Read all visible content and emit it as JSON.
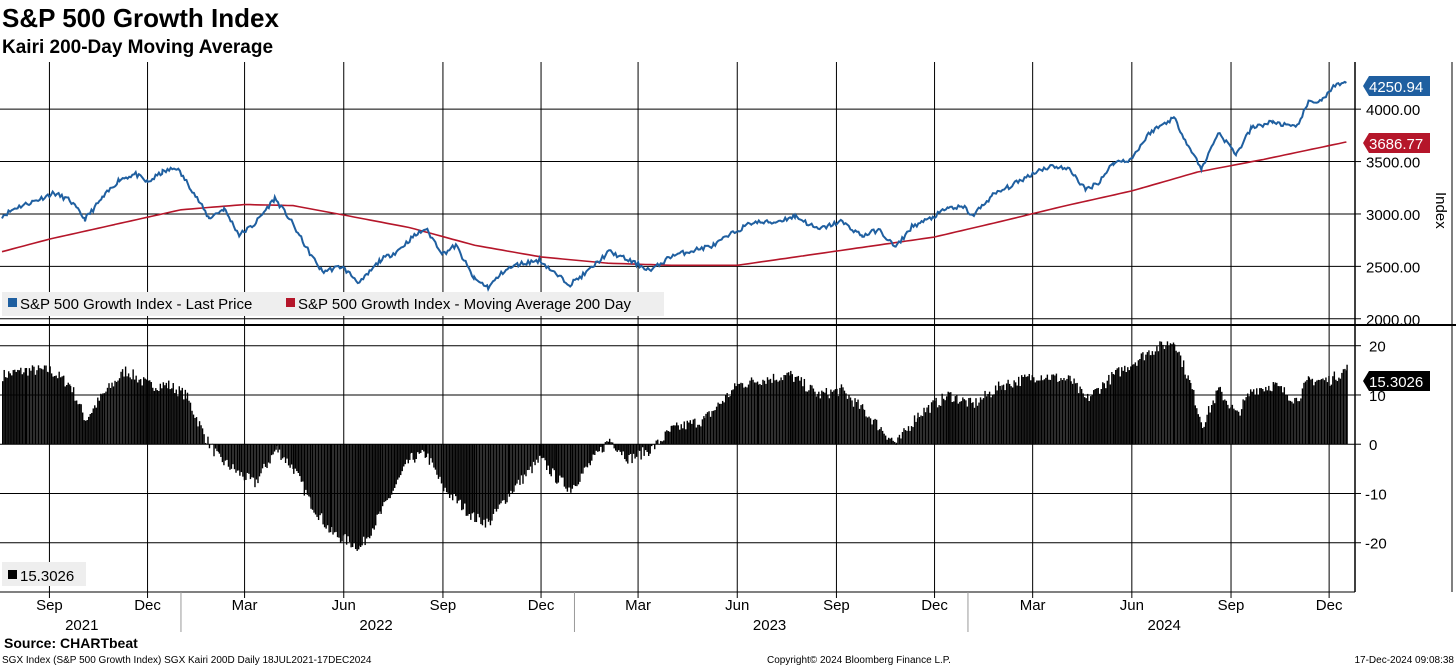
{
  "header": {
    "title": "S&P 500 Growth Index",
    "subtitle": "Kairi 200-Day Moving Average"
  },
  "footer": {
    "source": "Source: CHARTbeat",
    "ticker_info": "SGX Index (S&P 500 Growth Index) SGX Kairi 200D  Daily 18JUL2021-17DEC2024",
    "copyright": "Copyright© 2024 Bloomberg Finance L.P.",
    "timestamp": "17-Dec-2024 09:08:38"
  },
  "colors": {
    "price": "#1f5fa0",
    "ma": "#b5162a",
    "kairi": "#000000",
    "grid": "#000000"
  },
  "chart_data": [
    {
      "type": "line",
      "ylabel": "Index",
      "ylim": [
        1950,
        4450
      ],
      "yticks": [
        "2000.00",
        "2500.00",
        "3000.00",
        "3500.00",
        "4000.00"
      ],
      "grid": true,
      "legend_placement": "bottom-left",
      "series": [
        {
          "name": "S&P 500 Growth Index - Last Price",
          "last_label": "4250.94",
          "points": [
            [
              "2021-07-19",
              2980
            ],
            [
              "2021-08-01",
              3060
            ],
            [
              "2021-08-20",
              3130
            ],
            [
              "2021-09-05",
              3200
            ],
            [
              "2021-09-20",
              3130
            ],
            [
              "2021-10-04",
              2950
            ],
            [
              "2021-10-20",
              3150
            ],
            [
              "2021-11-05",
              3330
            ],
            [
              "2021-11-20",
              3380
            ],
            [
              "2021-12-01",
              3300
            ],
            [
              "2021-12-15",
              3400
            ],
            [
              "2021-12-28",
              3440
            ],
            [
              "2022-01-10",
              3250
            ],
            [
              "2022-01-27",
              2960
            ],
            [
              "2022-02-10",
              3050
            ],
            [
              "2022-02-24",
              2800
            ],
            [
              "2022-03-10",
              2900
            ],
            [
              "2022-03-29",
              3150
            ],
            [
              "2022-04-12",
              2950
            ],
            [
              "2022-04-29",
              2650
            ],
            [
              "2022-05-12",
              2450
            ],
            [
              "2022-05-30",
              2500
            ],
            [
              "2022-06-16",
              2340
            ],
            [
              "2022-07-05",
              2560
            ],
            [
              "2022-07-20",
              2640
            ],
            [
              "2022-08-04",
              2780
            ],
            [
              "2022-08-16",
              2860
            ],
            [
              "2022-09-01",
              2620
            ],
            [
              "2022-09-13",
              2700
            ],
            [
              "2022-09-30",
              2380
            ],
            [
              "2022-10-13",
              2300
            ],
            [
              "2022-10-28",
              2460
            ],
            [
              "2022-11-10",
              2520
            ],
            [
              "2022-11-30",
              2560
            ],
            [
              "2022-12-15",
              2420
            ],
            [
              "2022-12-28",
              2330
            ],
            [
              "2023-01-12",
              2440
            ],
            [
              "2023-02-02",
              2640
            ],
            [
              "2023-02-20",
              2560
            ],
            [
              "2023-03-13",
              2460
            ],
            [
              "2023-04-01",
              2600
            ],
            [
              "2023-04-20",
              2650
            ],
            [
              "2023-05-10",
              2700
            ],
            [
              "2023-05-30",
              2830
            ],
            [
              "2023-06-15",
              2920
            ],
            [
              "2023-07-05",
              2920
            ],
            [
              "2023-07-25",
              2980
            ],
            [
              "2023-08-15",
              2850
            ],
            [
              "2023-09-05",
              2930
            ],
            [
              "2023-09-25",
              2790
            ],
            [
              "2023-10-10",
              2850
            ],
            [
              "2023-10-26",
              2680
            ],
            [
              "2023-11-10",
              2880
            ],
            [
              "2023-11-28",
              2960
            ],
            [
              "2023-12-14",
              3060
            ],
            [
              "2023-12-29",
              3060
            ],
            [
              "2024-01-05",
              2980
            ],
            [
              "2024-01-24",
              3180
            ],
            [
              "2024-02-12",
              3280
            ],
            [
              "2024-03-07",
              3420
            ],
            [
              "2024-03-20",
              3460
            ],
            [
              "2024-04-05",
              3420
            ],
            [
              "2024-04-19",
              3230
            ],
            [
              "2024-05-01",
              3300
            ],
            [
              "2024-05-15",
              3490
            ],
            [
              "2024-05-31",
              3520
            ],
            [
              "2024-06-18",
              3780
            ],
            [
              "2024-07-10",
              3920
            ],
            [
              "2024-07-25",
              3620
            ],
            [
              "2024-08-05",
              3430
            ],
            [
              "2024-08-20",
              3780
            ],
            [
              "2024-09-06",
              3570
            ],
            [
              "2024-09-20",
              3820
            ],
            [
              "2024-10-10",
              3880
            ],
            [
              "2024-10-31",
              3820
            ],
            [
              "2024-11-12",
              4060
            ],
            [
              "2024-11-25",
              4090
            ],
            [
              "2024-12-05",
              4210
            ],
            [
              "2024-12-17",
              4251
            ]
          ]
        },
        {
          "name": "S&P 500 Growth Index - Moving Average 200 Day",
          "last_label": "3686.77",
          "points": [
            [
              "2021-07-19",
              2640
            ],
            [
              "2021-09-01",
              2760
            ],
            [
              "2021-11-01",
              2900
            ],
            [
              "2022-01-01",
              3040
            ],
            [
              "2022-03-01",
              3090
            ],
            [
              "2022-04-15",
              3080
            ],
            [
              "2022-06-01",
              2990
            ],
            [
              "2022-08-01",
              2870
            ],
            [
              "2022-10-01",
              2700
            ],
            [
              "2022-12-01",
              2590
            ],
            [
              "2023-02-01",
              2530
            ],
            [
              "2023-04-01",
              2510
            ],
            [
              "2023-06-01",
              2510
            ],
            [
              "2023-08-01",
              2600
            ],
            [
              "2023-10-01",
              2690
            ],
            [
              "2023-12-01",
              2780
            ],
            [
              "2024-02-01",
              2930
            ],
            [
              "2024-04-01",
              3080
            ],
            [
              "2024-06-01",
              3220
            ],
            [
              "2024-08-01",
              3400
            ],
            [
              "2024-10-01",
              3520
            ],
            [
              "2024-12-17",
              3687
            ]
          ]
        }
      ]
    },
    {
      "type": "bar",
      "ylim": [
        -30,
        24
      ],
      "yticks": [
        "-20",
        "-10",
        "0",
        "10",
        "20"
      ],
      "grid": true,
      "legend_placement": "bottom-left",
      "series": [
        {
          "name": "",
          "last_label": "15.3026",
          "points": [
            [
              "2021-07-19",
              14
            ],
            [
              "2021-08-10",
              15
            ],
            [
              "2021-09-01",
              15
            ],
            [
              "2021-09-20",
              12
            ],
            [
              "2021-10-04",
              5
            ],
            [
              "2021-10-20",
              10
            ],
            [
              "2021-11-10",
              15
            ],
            [
              "2021-12-01",
              12
            ],
            [
              "2021-12-20",
              12
            ],
            [
              "2022-01-05",
              10
            ],
            [
              "2022-01-24",
              1
            ],
            [
              "2022-02-05",
              -3
            ],
            [
              "2022-02-24",
              -6
            ],
            [
              "2022-03-10",
              -8
            ],
            [
              "2022-03-30",
              -1
            ],
            [
              "2022-04-15",
              -5
            ],
            [
              "2022-05-01",
              -12
            ],
            [
              "2022-05-20",
              -18
            ],
            [
              "2022-06-16",
              -21
            ],
            [
              "2022-07-05",
              -14
            ],
            [
              "2022-08-01",
              -3
            ],
            [
              "2022-08-16",
              -2
            ],
            [
              "2022-09-01",
              -9
            ],
            [
              "2022-09-30",
              -15
            ],
            [
              "2022-10-13",
              -16
            ],
            [
              "2022-11-01",
              -10
            ],
            [
              "2022-11-30",
              -3
            ],
            [
              "2022-12-15",
              -7
            ],
            [
              "2022-12-28",
              -9
            ],
            [
              "2023-01-15",
              -4
            ],
            [
              "2023-02-02",
              1
            ],
            [
              "2023-02-20",
              -3
            ],
            [
              "2023-03-13",
              -1
            ],
            [
              "2023-04-01",
              3
            ],
            [
              "2023-05-01",
              5
            ],
            [
              "2023-06-01",
              12
            ],
            [
              "2023-06-20",
              13
            ],
            [
              "2023-07-20",
              14
            ],
            [
              "2023-08-15",
              10
            ],
            [
              "2023-09-05",
              11
            ],
            [
              "2023-09-25",
              7
            ],
            [
              "2023-10-26",
              0
            ],
            [
              "2023-11-15",
              6
            ],
            [
              "2023-12-14",
              10
            ],
            [
              "2024-01-05",
              8
            ],
            [
              "2024-02-01",
              12
            ],
            [
              "2024-03-07",
              14
            ],
            [
              "2024-04-05",
              13
            ],
            [
              "2024-04-19",
              9
            ],
            [
              "2024-05-15",
              14
            ],
            [
              "2024-06-18",
              19
            ],
            [
              "2024-07-10",
              21
            ],
            [
              "2024-07-25",
              12
            ],
            [
              "2024-08-05",
              4
            ],
            [
              "2024-08-20",
              11
            ],
            [
              "2024-09-06",
              6
            ],
            [
              "2024-09-20",
              11
            ],
            [
              "2024-10-10",
              12
            ],
            [
              "2024-10-31",
              9
            ],
            [
              "2024-11-12",
              13
            ],
            [
              "2024-12-01",
              13
            ],
            [
              "2024-12-17",
              15.3
            ]
          ]
        }
      ]
    }
  ],
  "xaxis": {
    "months": [
      [
        "2021-09-01",
        "Sep"
      ],
      [
        "2021-12-01",
        "Dec"
      ],
      [
        "2022-03-01",
        "Mar"
      ],
      [
        "2022-06-01",
        "Jun"
      ],
      [
        "2022-09-01",
        "Sep"
      ],
      [
        "2022-12-01",
        "Dec"
      ],
      [
        "2023-03-01",
        "Mar"
      ],
      [
        "2023-06-01",
        "Jun"
      ],
      [
        "2023-09-01",
        "Sep"
      ],
      [
        "2023-12-01",
        "Dec"
      ],
      [
        "2024-03-01",
        "Mar"
      ],
      [
        "2024-06-01",
        "Jun"
      ],
      [
        "2024-09-01",
        "Sep"
      ],
      [
        "2024-12-01",
        "Dec"
      ]
    ],
    "years": [
      [
        "2021-10-01",
        "2021"
      ],
      [
        "2022-07-01",
        "2022"
      ],
      [
        "2023-07-01",
        "2023"
      ],
      [
        "2024-07-01",
        "2024"
      ]
    ],
    "range": [
      "2021-07-19",
      "2024-12-25"
    ]
  }
}
